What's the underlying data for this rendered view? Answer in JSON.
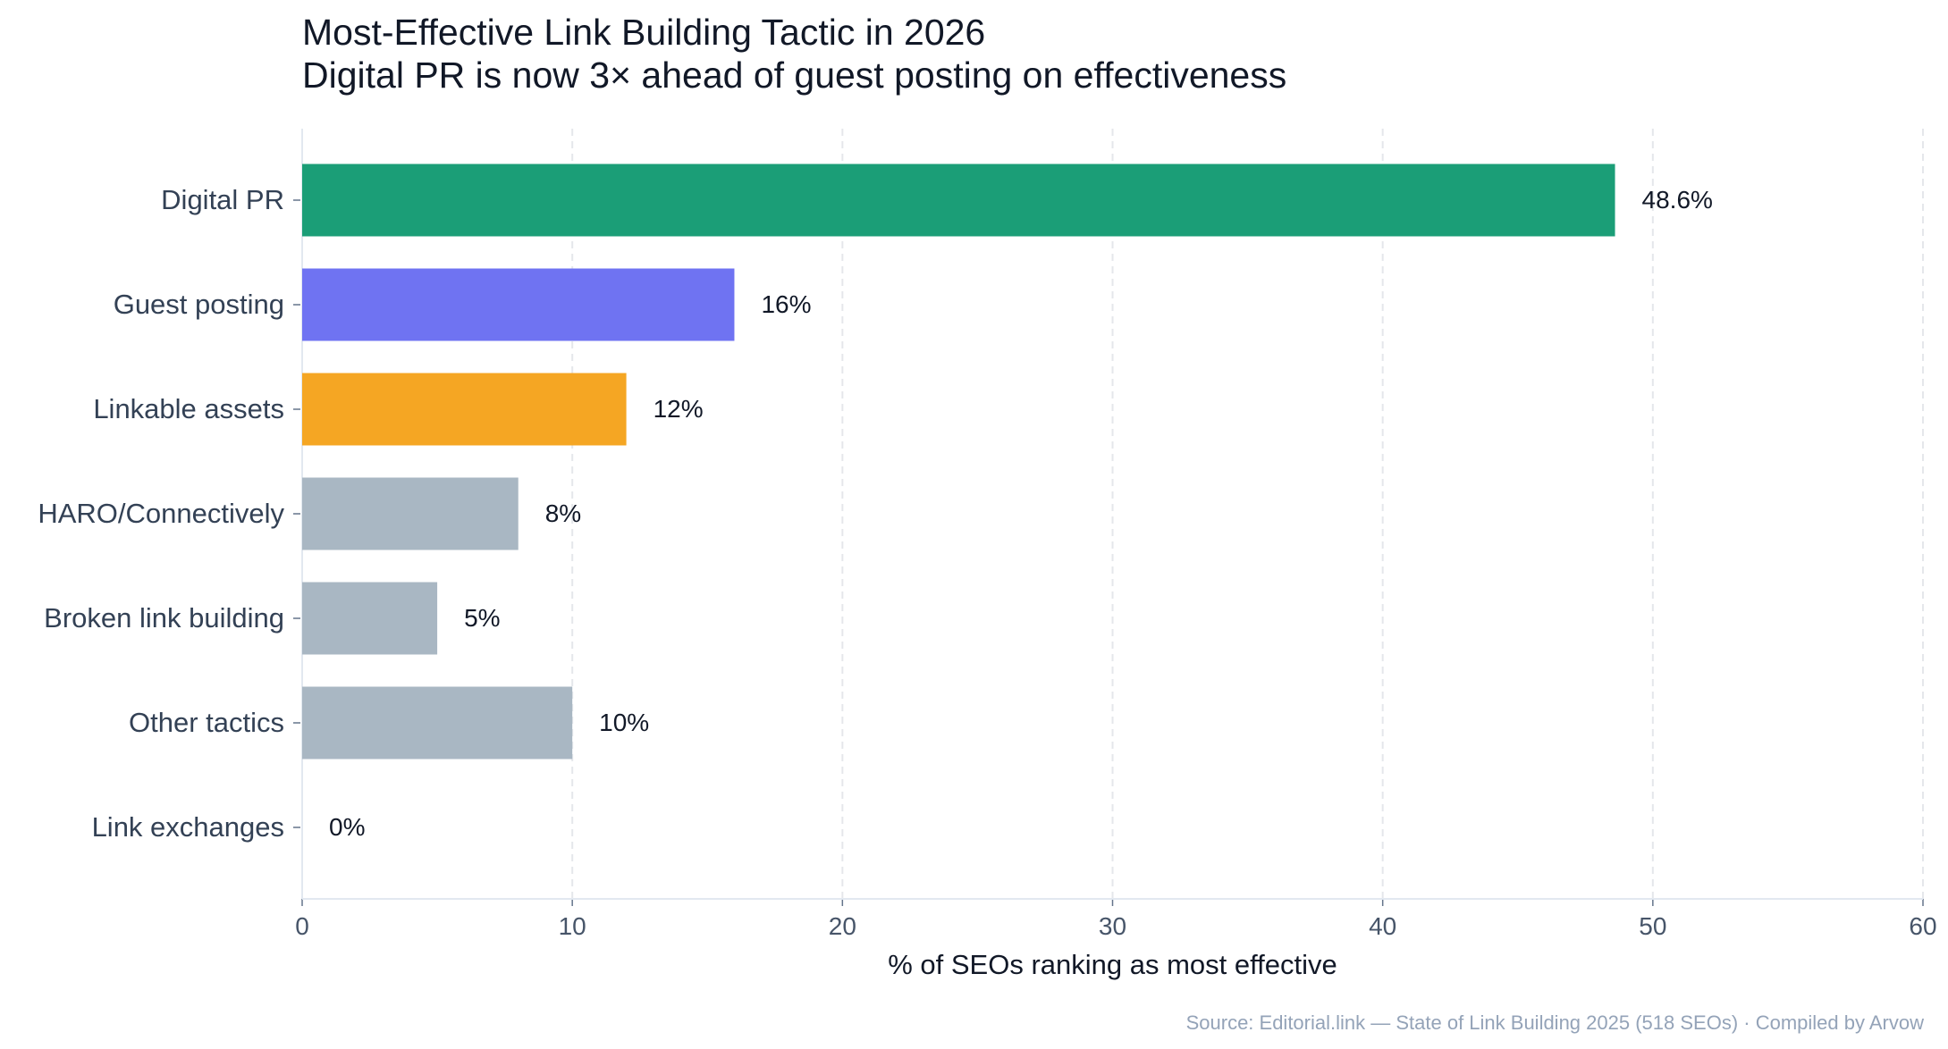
{
  "chart_data": {
    "type": "bar",
    "orientation": "horizontal",
    "title": "Most-Effective Link Building Tactic in 2026",
    "subtitle": "Digital PR is now 3× ahead of guest posting on effectiveness",
    "categories": [
      "Digital PR",
      "Guest posting",
      "Linkable assets",
      "HARO/Connectively",
      "Broken link building",
      "Other tactics",
      "Link exchanges"
    ],
    "values": [
      48.6,
      16,
      12,
      8,
      5,
      10,
      0
    ],
    "data_labels": [
      "48.6%",
      "16%",
      "12%",
      "8%",
      "5%",
      "10%",
      "0%"
    ],
    "colors": [
      "#1b9e77",
      "#6f73f2",
      "#f5a623",
      "#a9b7c3",
      "#a9b7c3",
      "#a9b7c3",
      "#a9b7c3"
    ],
    "xlabel": "% of SEOs ranking as most effective",
    "ylabel": "",
    "xlim": [
      0,
      60
    ],
    "xticks": [
      0,
      10,
      20,
      30,
      40,
      50,
      60
    ],
    "grid": "vertical dashed",
    "source": "Source: Editorial.link — State of Link Building 2025 (518 SEOs) · Compiled by Arvow"
  }
}
